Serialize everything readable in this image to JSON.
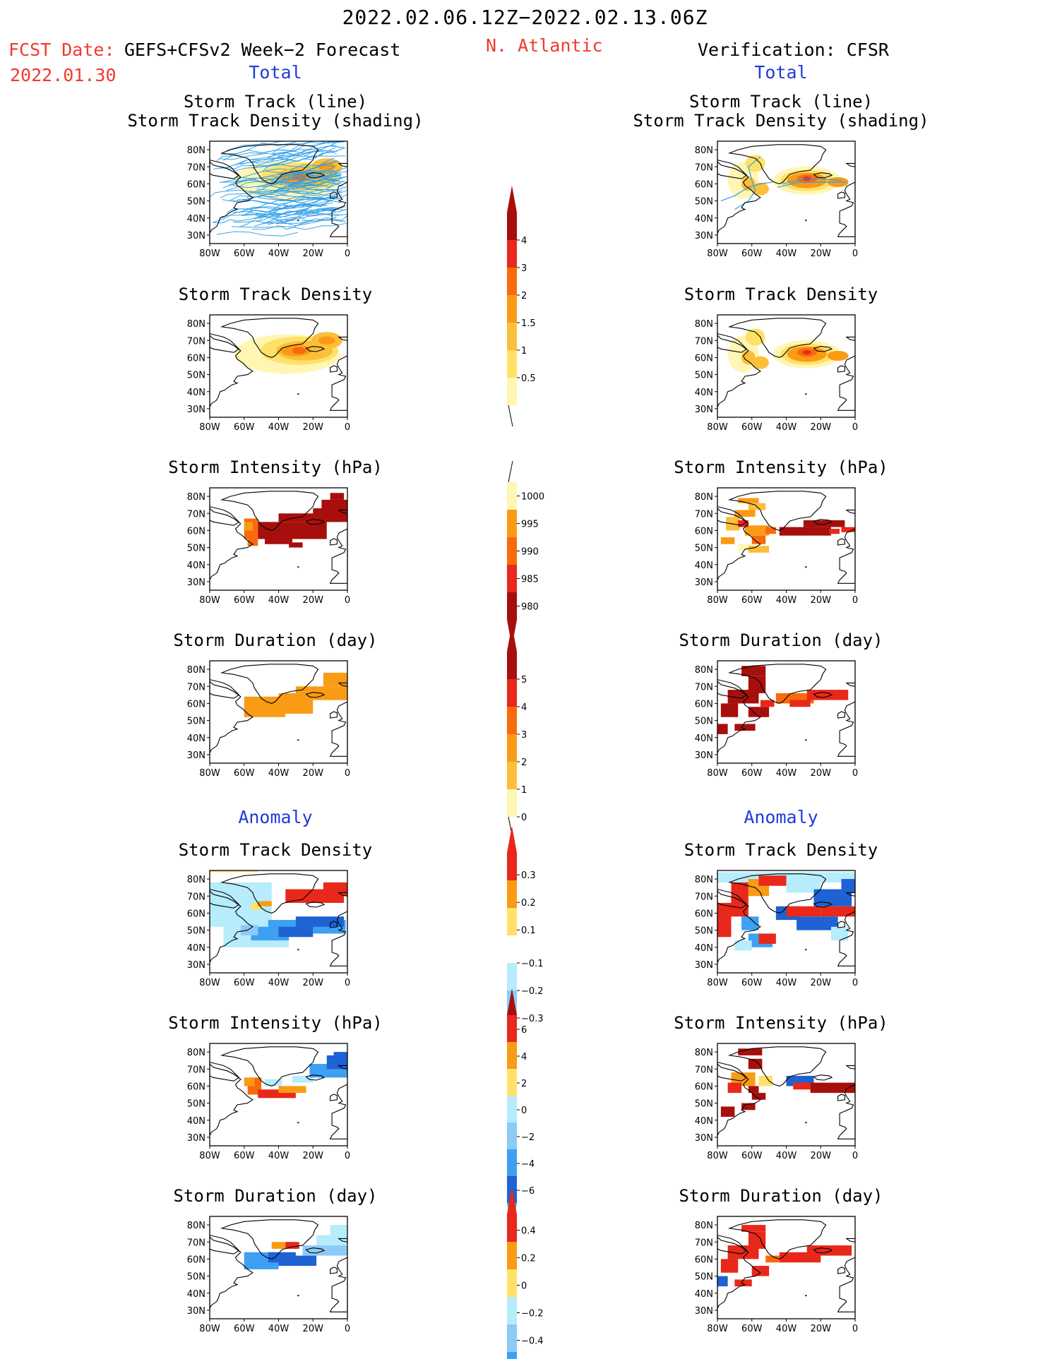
{
  "header": {
    "period": "2022.02.06.12Z−2022.02.13.06Z",
    "fcst_label": "FCST Date:",
    "fcst_model": "GEFS+CFSv2 Week−2 Forecast",
    "fcst_date": "2022.01.30",
    "region": "N. Atlantic",
    "verification": "Verification: CFSR",
    "total_left": "Total",
    "total_right": "Total",
    "anomaly_left": "Anomaly",
    "anomaly_right": "Anomaly"
  },
  "panel_titles": {
    "track_line": "Storm Track (line)",
    "track_density_shading": "Storm Track Density (shading)",
    "track_density": "Storm Track Density",
    "intensity": "Storm Intensity (hPa)",
    "duration": "Storm Duration (day)"
  },
  "axes": {
    "lat_ticks": [
      "80N",
      "70N",
      "60N",
      "50N",
      "40N",
      "30N"
    ],
    "lon_ticks": [
      "80W",
      "60W",
      "40W",
      "20W",
      "0"
    ]
  },
  "colors": {
    "pale_yellow": "#fff6b4",
    "yellow": "#ffe169",
    "light_orange": "#fbbf3a",
    "orange": "#fa9b15",
    "dark_orange": "#f96a0c",
    "red": "#e8281a",
    "dark_red": "#a70f0c",
    "light_blue": "#b6ecfb",
    "mid_blue": "#8ccaf8",
    "blue": "#3ea0f2",
    "dark_blue": "#1e62d3",
    "track_line": "#2f9fe8"
  },
  "colorbars": {
    "density_total": [
      "0.5",
      "1",
      "1.5",
      "2",
      "3",
      "4"
    ],
    "intensity_total": [
      "1000",
      "995",
      "990",
      "985",
      "980"
    ],
    "duration_total": [
      "0",
      "1",
      "2",
      "3",
      "4",
      "5"
    ],
    "density_anom": [
      "0.3",
      "0.2",
      "0.1",
      "−0.1",
      "−0.2",
      "−0.3"
    ],
    "intensity_anom": [
      "6",
      "4",
      "2",
      "0",
      "−2",
      "−4",
      "−6"
    ],
    "duration_anom": [
      "0.4",
      "0.2",
      "0",
      "−0.2",
      "−0.4"
    ]
  },
  "chart_data": {
    "type": "heatmap",
    "title": "2022.02.06.12Z−2022.02.13.06Z",
    "region": "N. Atlantic",
    "xlim": [
      -80,
      0
    ],
    "ylim": [
      25,
      85
    ],
    "xlabel": "",
    "ylabel": "",
    "panels": [
      {
        "id": "fcst-total-track",
        "column": "forecast",
        "field": "storm track density + tracks",
        "peak_value": 3,
        "peak_location": [
          -30,
          63
        ]
      },
      {
        "id": "fcst-total-density",
        "column": "forecast",
        "field": "storm track density",
        "peak_value": 3,
        "peak_location": [
          -30,
          63
        ]
      },
      {
        "id": "fcst-total-intensity",
        "column": "forecast",
        "field": "storm intensity (hPa)",
        "typical_value": 980
      },
      {
        "id": "fcst-total-duration",
        "column": "forecast",
        "field": "storm duration (day)",
        "typical_value": 2
      },
      {
        "id": "fcst-anom-density",
        "column": "forecast",
        "field": "storm track density anomaly",
        "range": [
          -0.3,
          0.3
        ]
      },
      {
        "id": "fcst-anom-intensity",
        "column": "forecast",
        "field": "storm intensity anomaly (hPa)",
        "range": [
          -6,
          6
        ]
      },
      {
        "id": "fcst-anom-duration",
        "column": "forecast",
        "field": "storm duration anomaly (day)",
        "range": [
          -0.4,
          0.4
        ]
      },
      {
        "id": "obs-total-track",
        "column": "verification",
        "field": "storm track density + tracks",
        "peak_value": 4,
        "peak_location": [
          -28,
          63
        ]
      },
      {
        "id": "obs-total-density",
        "column": "verification",
        "field": "storm track density",
        "peak_value": 4,
        "peak_location": [
          -28,
          63
        ]
      },
      {
        "id": "obs-total-intensity",
        "column": "verification",
        "field": "storm intensity (hPa)",
        "typical_value": 980
      },
      {
        "id": "obs-total-duration",
        "column": "verification",
        "field": "storm duration (day)",
        "typical_value": 4
      },
      {
        "id": "obs-anom-density",
        "column": "verification",
        "field": "storm track density anomaly",
        "range": [
          -0.3,
          0.3
        ]
      },
      {
        "id": "obs-anom-intensity",
        "column": "verification",
        "field": "storm intensity anomaly (hPa)",
        "range": [
          -6,
          6
        ]
      },
      {
        "id": "obs-anom-duration",
        "column": "verification",
        "field": "storm duration anomaly (day)",
        "range": [
          -0.4,
          0.4
        ]
      }
    ]
  }
}
